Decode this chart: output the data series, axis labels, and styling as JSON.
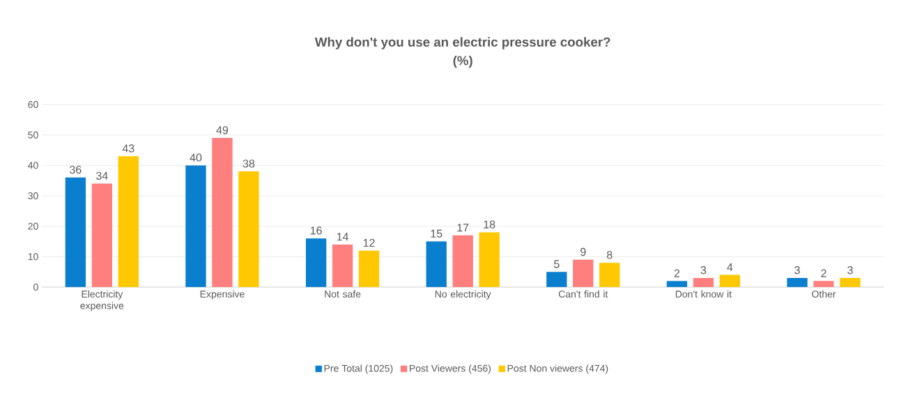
{
  "chart_data": {
    "type": "bar",
    "title": "Why don't you use an electric pressure cooker?",
    "subtitle": "(%)",
    "categories": [
      "Electricity expensive",
      "Expensive",
      "Not safe",
      "No electricity",
      "Can't find it",
      "Don't know it",
      "Other"
    ],
    "series": [
      {
        "name": "Pre Total (1025)",
        "color": "#0a7fcf",
        "values": [
          36,
          40,
          16,
          15,
          5,
          2,
          3
        ]
      },
      {
        "name": "Post Viewers (456)",
        "color": "#ff7f7e",
        "values": [
          34,
          49,
          14,
          17,
          9,
          3,
          2
        ]
      },
      {
        "name": "Post Non viewers (474)",
        "color": "#ffc800",
        "values": [
          43,
          38,
          12,
          18,
          8,
          4,
          3
        ]
      }
    ],
    "ylim": [
      0,
      60
    ],
    "yticks": [
      0,
      10,
      20,
      30,
      40,
      50,
      60
    ],
    "grid": "y",
    "legend": "bottom",
    "data_labels": true
  }
}
